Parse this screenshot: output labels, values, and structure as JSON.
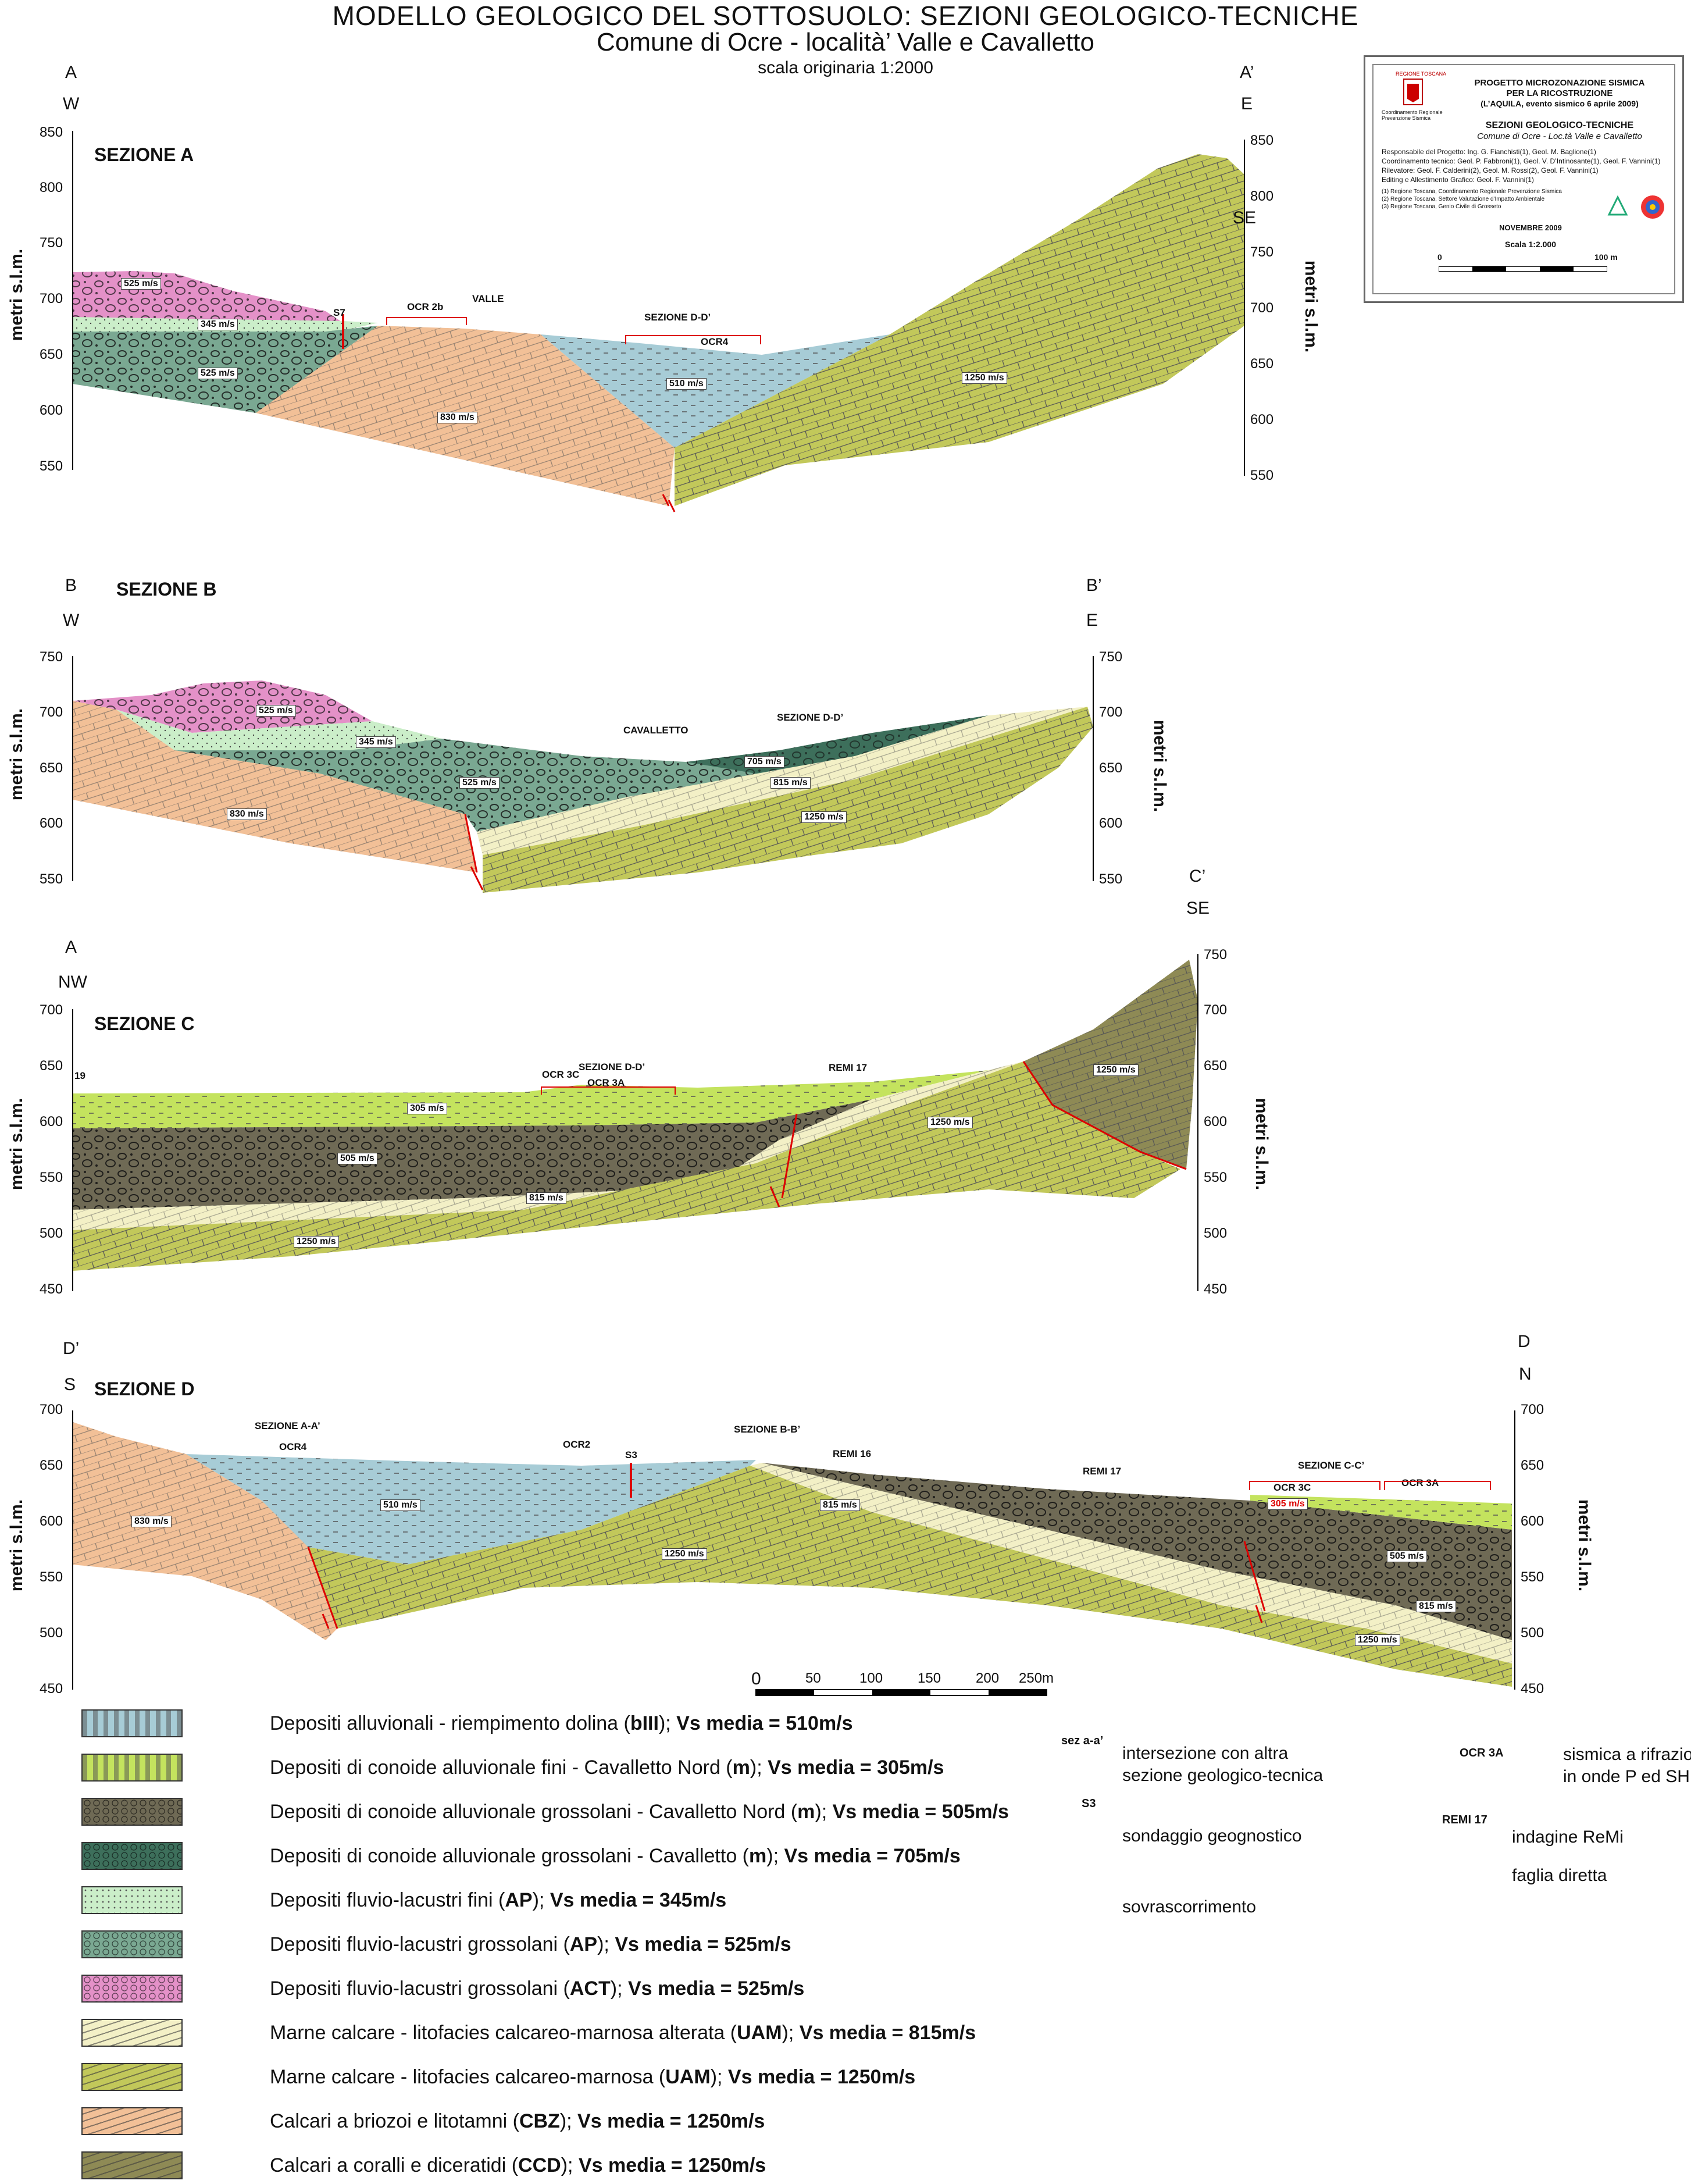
{
  "header": {
    "title": "MODELLO GEOLOGICO DEL SOTTOSUOLO: SEZIONI GEOLOGICO-TECNICHE",
    "subtitle": "Comune di Ocre - località’ Valle e Cavalletto",
    "scale_note": "scala originaria 1:2000"
  },
  "title_block": {
    "region_logo_text": "REGIONE TOSCANA",
    "region_caption": "Coordinamento Regionale Prevenzione Sismica",
    "project_l1": "PROGETTO MICROZONAZIONE SISMICA",
    "project_l2": "PER LA RICOSTRUZIONE",
    "project_l3": "(L’AQUILA, evento sismico 6 aprile 2009)",
    "sheet_title": "SEZIONI GEOLOGICO-TECNICHE",
    "sheet_subtitle": "Comune di Ocre - Loc.tà Valle e Cavalletto",
    "credits_1": "Responsabile del Progetto: Ing. G. Fianchisti(1), Geol. M. Baglione(1)",
    "credits_2": "Coordinamento tecnico: Geol. P. Fabbroni(1), Geol. V. D’Intinosante(1), Geol. F. Vannini(1)",
    "credits_3": "Rilevatore: Geol. F. Calderini(2), Geol. M. Rossi(2), Geol. F. Vannini(1)",
    "credits_4": "Editing e Allestimento Grafico: Geol. F. Vannini(1)",
    "note_1": "(1) Regione Toscana, Coordinamento Regionale Prevenzione Sismica",
    "note_2": "(2) Regione Toscana, Settore Valutazione d'Impatto Ambientale",
    "note_3": "(3) Regione Toscana, Genio Civile di Grosseto",
    "date": "NOVEMBRE 2009",
    "scale": "Scala 1:2.000",
    "bar_start": "0",
    "bar_end": "100 m"
  },
  "axis": {
    "ylabel": "metri s.l.m."
  },
  "sections": {
    "A": {
      "title": "SEZIONE A",
      "left_letter": "A",
      "right_letter": "A’",
      "left_dir": "W",
      "right_dir": "E",
      "right_dir2": "SE",
      "left_ticks": [
        "850",
        "800",
        "750",
        "700",
        "650",
        "600",
        "550"
      ],
      "right_ticks": [
        "850",
        "800",
        "750",
        "700",
        "650",
        "600",
        "550"
      ],
      "labels": {
        "s7": "S7",
        "ocr2b": "OCR 2b",
        "valle": "VALLE",
        "sez_dd": "SEZIONE D-D’",
        "ocr4": "OCR4"
      },
      "vs": [
        "525 m/s",
        "345 m/s",
        "525 m/s",
        "830 m/s",
        "510 m/s",
        "1250 m/s"
      ]
    },
    "B": {
      "title": "SEZIONE B",
      "left_letter": "B",
      "right_letter": "B’",
      "left_dir": "W",
      "right_dir": "E",
      "left_ticks": [
        "750",
        "700",
        "650",
        "600",
        "550"
      ],
      "right_ticks": [
        "750",
        "700",
        "650",
        "600",
        "550"
      ],
      "labels": {
        "cavalletto": "CAVALLETTO",
        "sez_dd": "SEZIONE D-D’"
      },
      "vs": [
        "525 m/s",
        "345 m/s",
        "525 m/s",
        "830 m/s",
        "705 m/s",
        "815 m/s",
        "1250 m/s"
      ]
    },
    "C": {
      "title": "SEZIONE C",
      "left_letter": "A",
      "right_letter": "C’",
      "left_dir": "NW",
      "right_dir": "SE",
      "left_ticks": [
        "700",
        "650",
        "600",
        "550",
        "500",
        "450"
      ],
      "right_ticks": [
        "750",
        "700",
        "650",
        "600",
        "550",
        "500",
        "450"
      ],
      "labels": {
        "n19": "19",
        "ocr3c": "OCR 3C",
        "sez_dd": "SEZIONE D-D’",
        "ocr3a": "OCR 3A",
        "remi17": "REMI 17"
      },
      "vs": [
        "305 m/s",
        "505 m/s",
        "815 m/s",
        "1250 m/s",
        "1250 m/s",
        "1250 m/s"
      ]
    },
    "D": {
      "title": "SEZIONE D",
      "left_letter": "D’",
      "right_letter": "D",
      "left_dir": "S",
      "right_dir": "N",
      "left_ticks": [
        "700",
        "650",
        "600",
        "550",
        "500",
        "450"
      ],
      "right_ticks": [
        "700",
        "650",
        "600",
        "550",
        "500",
        "450"
      ],
      "labels": {
        "sez_aa": "SEZIONE A-A’",
        "ocr4": "OCR4",
        "ocr2": "OCR2",
        "s3": "S3",
        "sez_bb": "SEZIONE B-B’",
        "remi16": "REMI 16",
        "remi17": "REMI 17",
        "sez_cc": "SEZIONE C-C’",
        "ocr3c": "OCR 3C",
        "ocr3a": "OCR 3A"
      },
      "vs": [
        "830 m/s",
        "510 m/s",
        "1250 m/s",
        "815 m/s",
        "305 m/s",
        "505 m/s",
        "815 m/s",
        "1250 m/s"
      ]
    }
  },
  "scalebar": {
    "ticks": [
      "0",
      "50",
      "100",
      "150",
      "200",
      "250m"
    ]
  },
  "legend": [
    {
      "name": "Depositi alluvionali - riempimento dolina (",
      "code": "bIII",
      "tail": "); ",
      "vs": "Vs media = 510m/s",
      "color": "#a7ccd6"
    },
    {
      "name": "Depositi di conoide alluvionale fini - Cavalletto Nord (",
      "code": "m",
      "tail": "); ",
      "vs": "Vs media = 305m/s",
      "color": "#c4e35e"
    },
    {
      "name": "Depositi di conoide alluvionale grossolani - Cavalletto Nord (",
      "code": "m",
      "tail": "); ",
      "vs": "Vs media = 505m/s",
      "color": "#6f6a55"
    },
    {
      "name": "Depositi di conoide alluvionale grossolani - Cavalletto (",
      "code": "m",
      "tail": "); ",
      "vs": "Vs media = 705m/s",
      "color": "#3d6f5b"
    },
    {
      "name": "Depositi fluvio-lacustri fini (",
      "code": "AP",
      "tail": "); ",
      "vs": "Vs media = 345m/s",
      "color": "#cbeec9"
    },
    {
      "name": "Depositi fluvio-lacustri grossolani (",
      "code": "AP",
      "tail": "); ",
      "vs": "Vs media = 525m/s",
      "color": "#7aa892"
    },
    {
      "name": "Depositi fluvio-lacustri grossolani (",
      "code": "ACT",
      "tail": "); ",
      "vs": "Vs media = 525m/s",
      "color": "#e491c8"
    },
    {
      "name": "Marne calcare - litofacies calcareo-marnosa alterata (",
      "code": "UAM",
      "tail": "); ",
      "vs": "Vs media = 815m/s",
      "color": "#f3f0c6"
    },
    {
      "name": "Marne calcare - litofacies calcareo-marnosa (",
      "code": "UAM",
      "tail": "); ",
      "vs": "Vs media = 1250m/s",
      "color": "#c2c85a"
    },
    {
      "name": "Calcari a briozoi e litotamni (",
      "code": "CBZ",
      "tail": "); ",
      "vs": "Vs media = 1250m/s",
      "color": "#f2c097"
    },
    {
      "name": "Calcari a coralli e diceratidi (",
      "code": "CCD",
      "tail": "); ",
      "vs": "Vs media = 1250m/s",
      "color": "#8e8a55"
    }
  ],
  "symbols": {
    "intersect_tag": "sez a-a’",
    "intersect_l1": "intersezione con altra",
    "intersect_l2": "sezione geologico-tecnica",
    "borehole_tag": "S3",
    "borehole": "sondaggio geognostico",
    "thrust": "sovrascorrimento",
    "seismic_tag": "OCR 3A",
    "seismic_l1": "sismica a rifrazione",
    "seismic_l2": "in onde P ed SH",
    "remi_tag": "REMI 17",
    "remi": "indagine ReMi",
    "fault": "faglia diretta"
  }
}
